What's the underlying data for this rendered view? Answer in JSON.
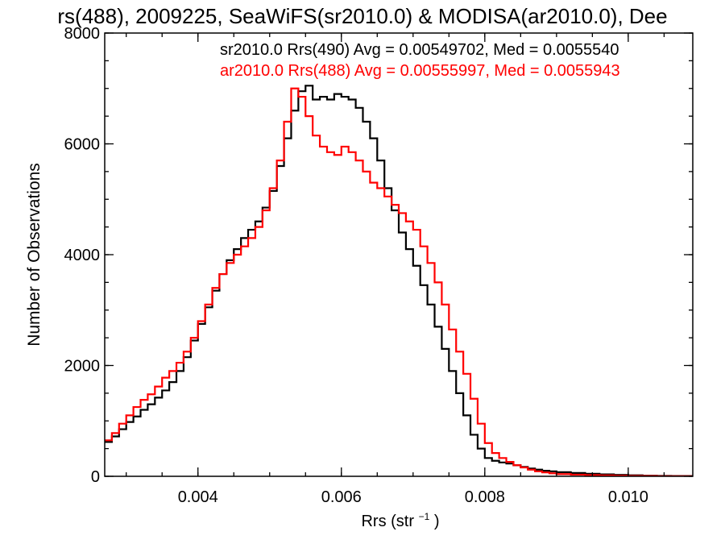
{
  "chart_data": {
    "type": "line",
    "title": "rs(488), 2009225, SeaWiFS(sr2010.0) & MODISA(ar2010.0), Dee",
    "xlabel_main": "Rrs (str",
    "xlabel_sup": "−1",
    "xlabel_end": ")",
    "ylabel": "Number of Observations",
    "xlim": [
      0.0027,
      0.0109
    ],
    "ylim": [
      0,
      8000
    ],
    "xticks": [
      0.004,
      0.006,
      0.008,
      0.01
    ],
    "xtick_labels": [
      "0.004",
      "0.006",
      "0.008",
      "0.010"
    ],
    "yticks": [
      0,
      2000,
      4000,
      6000,
      8000
    ],
    "ytick_labels": [
      "0",
      "2000",
      "4000",
      "6000",
      "8000"
    ],
    "xminor": 0.0005,
    "yminor": 500,
    "grid": false,
    "legend_position": "top-right",
    "series": [
      {
        "name": "sr2010.0 Rrs(490) Avg = 0.00549702, Med = 0.0055540",
        "color": "#000000",
        "x": [
          0.0027,
          0.0028,
          0.0029,
          0.003,
          0.0031,
          0.0032,
          0.0033,
          0.0034,
          0.0035,
          0.0036,
          0.0037,
          0.0038,
          0.0039,
          0.004,
          0.0041,
          0.0042,
          0.0043,
          0.0044,
          0.0045,
          0.0046,
          0.0047,
          0.0048,
          0.0049,
          0.005,
          0.0051,
          0.0052,
          0.0053,
          0.0054,
          0.0055,
          0.0056,
          0.0057,
          0.0058,
          0.0059,
          0.006,
          0.0061,
          0.0062,
          0.0063,
          0.0064,
          0.0065,
          0.0066,
          0.0067,
          0.0068,
          0.0069,
          0.007,
          0.0071,
          0.0072,
          0.0073,
          0.0074,
          0.0075,
          0.0076,
          0.0077,
          0.0078,
          0.0079,
          0.008,
          0.0081,
          0.0082,
          0.0083,
          0.0084,
          0.0085,
          0.0086,
          0.0087,
          0.0088,
          0.0089,
          0.009,
          0.0092,
          0.0094,
          0.0096,
          0.0098,
          0.01,
          0.0102,
          0.0104,
          0.0106,
          0.0109
        ],
        "y": [
          620,
          720,
          850,
          980,
          1080,
          1200,
          1300,
          1420,
          1550,
          1700,
          1900,
          2150,
          2450,
          2750,
          3050,
          3350,
          3650,
          3900,
          4100,
          4300,
          4450,
          4600,
          4850,
          5150,
          5600,
          6100,
          6600,
          6950,
          7050,
          6800,
          6850,
          6800,
          6900,
          6850,
          6800,
          6650,
          6400,
          6100,
          5700,
          5200,
          4800,
          4400,
          4100,
          3800,
          3450,
          3100,
          2700,
          2300,
          1900,
          1500,
          1100,
          750,
          500,
          330,
          280,
          250,
          230,
          200,
          170,
          140,
          120,
          100,
          90,
          75,
          60,
          45,
          35,
          25,
          18,
          12,
          8,
          5,
          3
        ]
      },
      {
        "name": "ar2010.0 Rrs(488) Avg = 0.00555997, Med = 0.0055943",
        "color": "#ff0000",
        "x": [
          0.0027,
          0.0028,
          0.0029,
          0.003,
          0.0031,
          0.0032,
          0.0033,
          0.0034,
          0.0035,
          0.0036,
          0.0037,
          0.0038,
          0.0039,
          0.004,
          0.0041,
          0.0042,
          0.0043,
          0.0044,
          0.0045,
          0.0046,
          0.0047,
          0.0048,
          0.0049,
          0.005,
          0.0051,
          0.0052,
          0.0053,
          0.0054,
          0.0055,
          0.0056,
          0.0057,
          0.0058,
          0.0059,
          0.006,
          0.0061,
          0.0062,
          0.0063,
          0.0064,
          0.0065,
          0.0066,
          0.0067,
          0.0068,
          0.0069,
          0.007,
          0.0071,
          0.0072,
          0.0073,
          0.0074,
          0.0075,
          0.0076,
          0.0077,
          0.0078,
          0.0079,
          0.008,
          0.0081,
          0.0082,
          0.0083,
          0.0084,
          0.0085,
          0.0086,
          0.0087,
          0.0088,
          0.0089,
          0.009,
          0.0092,
          0.0094,
          0.0096,
          0.0098,
          0.01,
          0.0102,
          0.0104,
          0.0106,
          0.0109
        ],
        "y": [
          650,
          780,
          950,
          1100,
          1250,
          1380,
          1480,
          1620,
          1780,
          1900,
          2050,
          2250,
          2500,
          2800,
          3100,
          3400,
          3650,
          3850,
          4000,
          4150,
          4300,
          4500,
          4800,
          5200,
          5700,
          6400,
          7000,
          6850,
          6500,
          6150,
          5950,
          5850,
          5800,
          5950,
          5850,
          5700,
          5500,
          5300,
          5200,
          5050,
          4900,
          4750,
          4600,
          4450,
          4150,
          3850,
          3500,
          3100,
          2650,
          2250,
          1850,
          1400,
          950,
          600,
          420,
          330,
          260,
          200,
          160,
          120,
          90,
          70,
          55,
          40,
          30,
          22,
          16,
          12,
          8,
          5,
          3,
          2,
          1
        ]
      }
    ]
  }
}
